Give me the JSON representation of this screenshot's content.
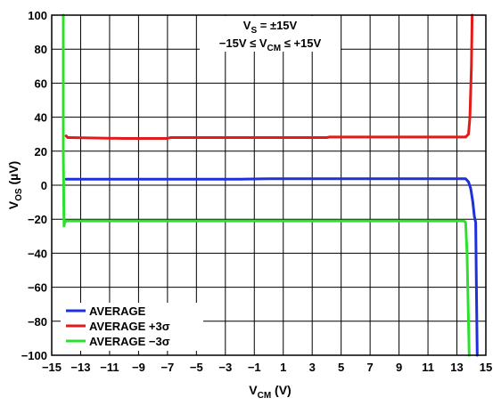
{
  "chart_data": {
    "type": "line",
    "xlabel_main": "V",
    "xlabel_sub": "CM",
    "xlabel_unit": " (V)",
    "ylabel_main": "V",
    "ylabel_sub": "OS",
    "ylabel_unit": " (µV)",
    "xlim": [
      -15,
      15
    ],
    "ylim": [
      -100,
      100
    ],
    "grid": true,
    "legend_position": "bottom-left",
    "x_tick_labels": [
      "−15",
      "−13",
      "−11",
      "−9",
      "−7",
      "−5",
      "−3",
      "−1",
      "1",
      "3",
      "5",
      "7",
      "9",
      "11",
      "13",
      "15"
    ],
    "x_tick_values": [
      -15,
      -13,
      -11,
      -9,
      -7,
      -5,
      -3,
      -1,
      1,
      3,
      5,
      7,
      9,
      11,
      13,
      15
    ],
    "y_tick_labels": [
      "100",
      "80",
      "60",
      "40",
      "20",
      "0",
      "−20",
      "−40",
      "−60",
      "−80",
      "−100"
    ],
    "y_tick_values": [
      100,
      80,
      60,
      40,
      20,
      0,
      -20,
      -40,
      -60,
      -80,
      -100
    ],
    "annotation_line1": {
      "main": "V",
      "sub": "S",
      "rest": " = ±15V"
    },
    "annotation_line2": {
      "pre": "−15V ≤ V",
      "sub": "CM",
      "post": " ≤ +15V"
    },
    "series": [
      {
        "name": "AVERAGE",
        "color": "#1f2fe0",
        "x": [
          -14.0,
          -13.8,
          -10,
          -6,
          -2,
          0,
          4,
          8,
          12,
          13.6,
          13.8,
          13.95,
          14.1,
          14.2,
          14.3,
          14.35,
          14.4
        ],
        "y": [
          3.5,
          3.5,
          3.5,
          3.5,
          3.5,
          3.8,
          3.8,
          3.8,
          3.8,
          3.8,
          2,
          -2,
          -10,
          -18,
          -22,
          -60,
          -100
        ]
      },
      {
        "name": "AVERAGE +3σ",
        "color": "#e21a1a",
        "x": [
          -14.0,
          -13.9,
          -13.8,
          -10,
          -7,
          -6.8,
          4,
          4.2,
          10,
          13.6,
          13.8,
          13.9,
          14.0,
          14.05
        ],
        "y": [
          29,
          28,
          28,
          27.5,
          27.5,
          28,
          28,
          28.3,
          28.3,
          28.3,
          30,
          40,
          70,
          100
        ]
      },
      {
        "name": "AVERAGE −3σ",
        "color": "#2ee02e",
        "x": [
          -14.2,
          -14.2,
          -14.15,
          -14.1,
          -14.0,
          -13.9,
          -13.8,
          -10,
          0,
          10,
          13.5,
          13.6,
          13.7,
          13.8,
          13.85
        ],
        "y": [
          100,
          20,
          -24,
          -22,
          -21,
          -21,
          -21,
          -21,
          -21,
          -21,
          -21,
          -22,
          -40,
          -80,
          -100
        ]
      }
    ]
  }
}
